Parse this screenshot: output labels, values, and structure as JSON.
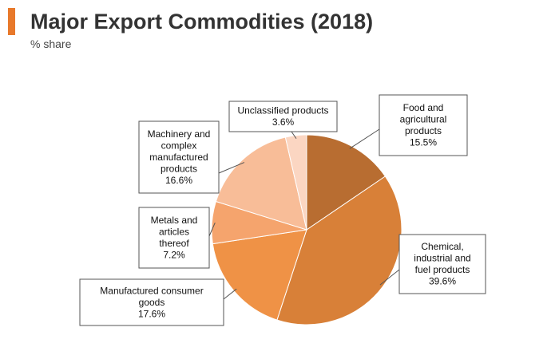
{
  "header": {
    "title": "Major Export Commodities (2018)",
    "subtitle": "% share",
    "accent_color": "#e8792b"
  },
  "chart_data": {
    "type": "pie",
    "title": "Major Export Commodities (2018)",
    "subtitle": "% share",
    "unit": "%",
    "start": "12 o'clock",
    "direction": "clockwise",
    "slices": [
      {
        "label": [
          "Food and",
          "agricultural",
          "products"
        ],
        "value": 15.5,
        "value_label": "15.5%",
        "color": "#b86d31"
      },
      {
        "label": [
          "Chemical,",
          "industrial and",
          "fuel products"
        ],
        "value": 39.6,
        "value_label": "39.6%",
        "color": "#d88038"
      },
      {
        "label": [
          "Manufactured consumer",
          "goods"
        ],
        "value": 17.6,
        "value_label": "17.6%",
        "color": "#ef9246"
      },
      {
        "label": [
          "Metals and",
          "articles",
          "thereof"
        ],
        "value": 7.2,
        "value_label": "7.2%",
        "color": "#f5a46d"
      },
      {
        "label": [
          "Machinery and",
          "complex",
          "manufactured",
          "products"
        ],
        "value": 16.6,
        "value_label": "16.6%",
        "color": "#f8bd98"
      },
      {
        "label": [
          "Unclassified products"
        ],
        "value": 3.6,
        "value_label": "3.6%",
        "color": "#fbd6c2"
      }
    ]
  }
}
